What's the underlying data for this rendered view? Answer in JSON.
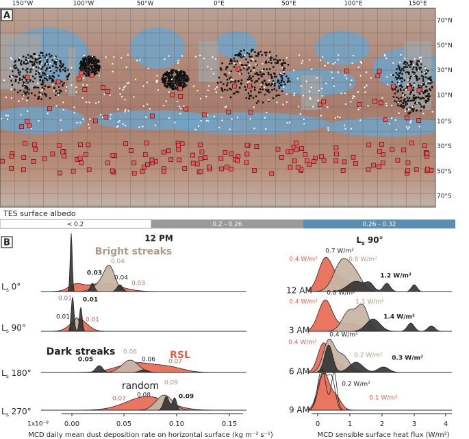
{
  "map": {
    "label": "A",
    "lon_labels": [
      "150°W",
      "100°W",
      "50°W",
      "0°E",
      "50°E",
      "100°E",
      "150°E"
    ],
    "lat_labels": [
      "70°N",
      "50°N",
      "30°N",
      "10°N",
      "10°S",
      "30°S",
      "50°S",
      "70°S"
    ]
  },
  "legend": {
    "title": "TES surface albedo",
    "bins": [
      "< 0.2",
      "0.2 - 0.26",
      "0.26 - 0.32"
    ]
  },
  "panel_b": {
    "label": "B",
    "left": {
      "title": "12 PM",
      "rows": [
        {
          "l": "L",
          "s": "s",
          "v": " 0°"
        },
        {
          "l": "L",
          "s": "s",
          "v": " 90°"
        },
        {
          "l": "L",
          "s": "s",
          "v": " 180°"
        },
        {
          "l": "L",
          "s": "s",
          "v": " 270°"
        }
      ],
      "scale": "1x10⁻⁸",
      "ticks": [
        "0.00",
        "0.05",
        "0.10",
        "0.15"
      ],
      "axis_label": "MCD daily mean dust deposition rate on horizontal surface (kg m⁻² s⁻¹)",
      "annotations": [
        "Bright streaks",
        "0.04",
        "0.03",
        "0.04",
        "0.03",
        "0.01",
        "0.01",
        "0.01",
        "0.01",
        "Dark streaks",
        "RSL",
        "0.05",
        "0.06",
        "0.06",
        "0.07",
        "random",
        "0.09",
        "0.07",
        "0.08",
        "0.09"
      ]
    },
    "right": {
      "title": {
        "l": "L",
        "s": "s",
        "v": " 90°"
      },
      "rows": [
        "12 AM",
        "3 AM",
        "6 AM",
        "9 AM"
      ],
      "ticks": [
        "0",
        "1",
        "2",
        "3",
        "4"
      ],
      "axis_label": "MCD sensible surface heat flux (W/m²)",
      "annotations": [
        "0.4 W/m²",
        "0.7 W/m²",
        "0.8 W/m²",
        "1.2 W/m²",
        "0.4 W/m²",
        "0.8 W/m²",
        "1.1 W/m²",
        "1.4 W/m²",
        "0.4 W/m²",
        "0.4 W/m²",
        "0.2 W/m²",
        "0.3 W/m²",
        "0.2 W/m²",
        "0.1 W/m²"
      ]
    }
  }
}
